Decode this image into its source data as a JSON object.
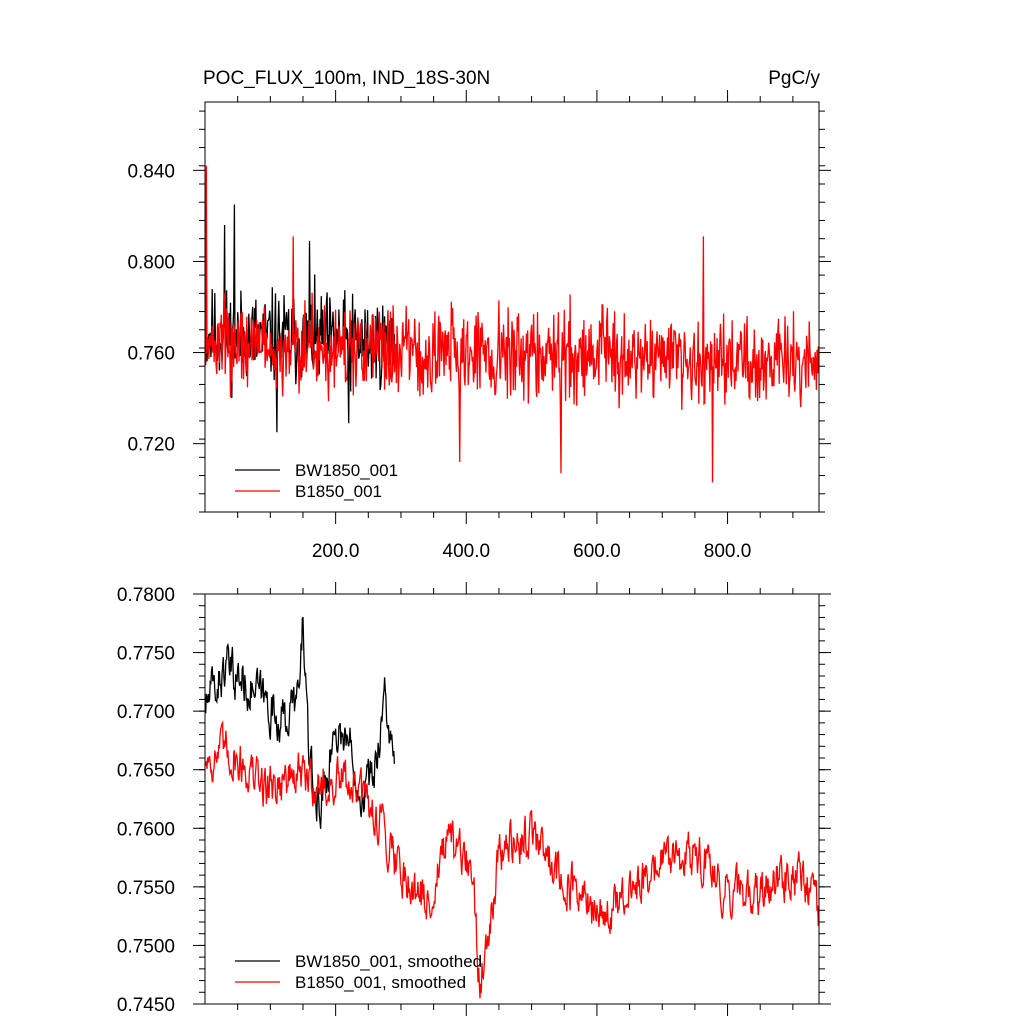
{
  "chart_data": [
    {
      "type": "line",
      "title": "POC_FLUX_100m, IND_18S-30N",
      "units": "PgC/y",
      "xlim": [
        0,
        940
      ],
      "ylim": [
        0.69,
        0.87
      ],
      "x_ticks": [
        200,
        400,
        600,
        800
      ],
      "x_tick_labels": [
        "200.0",
        "400.0",
        "600.0",
        "800.0"
      ],
      "y_ticks": [
        0.72,
        0.76,
        0.8,
        0.84
      ],
      "y_tick_labels": [
        "0.720",
        "0.760",
        "0.800",
        "0.840"
      ],
      "grid": false,
      "legend_position": "bottom-left",
      "series": [
        {
          "name": "BW1850_001",
          "color": "#000000",
          "x_range": [
            1,
            290
          ],
          "mean": 0.768,
          "amplitude": 0.016,
          "trend": -0.004,
          "spike_max": 0.825,
          "peaks": [
            {
              "x": 45,
              "y": 0.825
            },
            {
              "x": 30,
              "y": 0.816
            },
            {
              "x": 160,
              "y": 0.809
            }
          ],
          "troughs": [
            {
              "x": 110,
              "y": 0.725
            },
            {
              "x": 220,
              "y": 0.729
            }
          ]
        },
        {
          "name": "B1850_001",
          "color": "#ff0000",
          "x_range": [
            1,
            940
          ],
          "mean": 0.764,
          "amplitude": 0.015,
          "trend": -0.008,
          "peaks": [
            {
              "x": 2,
              "y": 0.842
            },
            {
              "x": 763,
              "y": 0.811
            },
            {
              "x": 135,
              "y": 0.811
            }
          ],
          "troughs": [
            {
              "x": 777,
              "y": 0.703
            },
            {
              "x": 545,
              "y": 0.707
            },
            {
              "x": 390,
              "y": 0.712
            }
          ]
        }
      ]
    },
    {
      "type": "line",
      "title": "",
      "xlim": [
        0,
        940
      ],
      "ylim": [
        0.745,
        0.78
      ],
      "x_ticks": [
        200,
        400,
        600,
        800
      ],
      "x_tick_labels": [],
      "y_ticks": [
        0.745,
        0.75,
        0.755,
        0.76,
        0.765,
        0.77,
        0.775,
        0.78
      ],
      "y_tick_labels": [
        "0.7450",
        "0.7500",
        "0.7550",
        "0.7600",
        "0.7650",
        "0.7700",
        "0.7750",
        "0.7800"
      ],
      "grid": false,
      "legend_position": "bottom-left",
      "series": [
        {
          "name": "BW1850_001, smoothed",
          "color": "#000000",
          "x_range": [
            1,
            290
          ],
          "anchors": [
            [
              1,
              0.7705
            ],
            [
              30,
              0.7735
            ],
            [
              60,
              0.7725
            ],
            [
              90,
              0.771
            ],
            [
              120,
              0.769
            ],
            [
              145,
              0.7715
            ],
            [
              150,
              0.7783
            ],
            [
              160,
              0.765
            ],
            [
              175,
              0.7615
            ],
            [
              200,
              0.7685
            ],
            [
              220,
              0.7675
            ],
            [
              240,
              0.763
            ],
            [
              260,
              0.765
            ],
            [
              275,
              0.7715
            ],
            [
              290,
              0.7645
            ]
          ]
        },
        {
          "name": "B1850_001, smoothed",
          "color": "#ff0000",
          "x_range": [
            1,
            940
          ],
          "anchors": [
            [
              1,
              0.766
            ],
            [
              40,
              0.7665
            ],
            [
              90,
              0.7635
            ],
            [
              140,
              0.7645
            ],
            [
              180,
              0.7635
            ],
            [
              220,
              0.764
            ],
            [
              250,
              0.762
            ],
            [
              270,
              0.7605
            ],
            [
              300,
              0.7565
            ],
            [
              320,
              0.755
            ],
            [
              340,
              0.7535
            ],
            [
              370,
              0.7585
            ],
            [
              410,
              0.7565
            ],
            [
              420,
              0.7465
            ],
            [
              450,
              0.758
            ],
            [
              500,
              0.7595
            ],
            [
              550,
              0.7555
            ],
            [
              600,
              0.7525
            ],
            [
              640,
              0.7535
            ],
            [
              700,
              0.7575
            ],
            [
              760,
              0.7575
            ],
            [
              800,
              0.7545
            ],
            [
              850,
              0.7545
            ],
            [
              900,
              0.7565
            ],
            [
              940,
              0.7525
            ]
          ]
        }
      ]
    }
  ]
}
